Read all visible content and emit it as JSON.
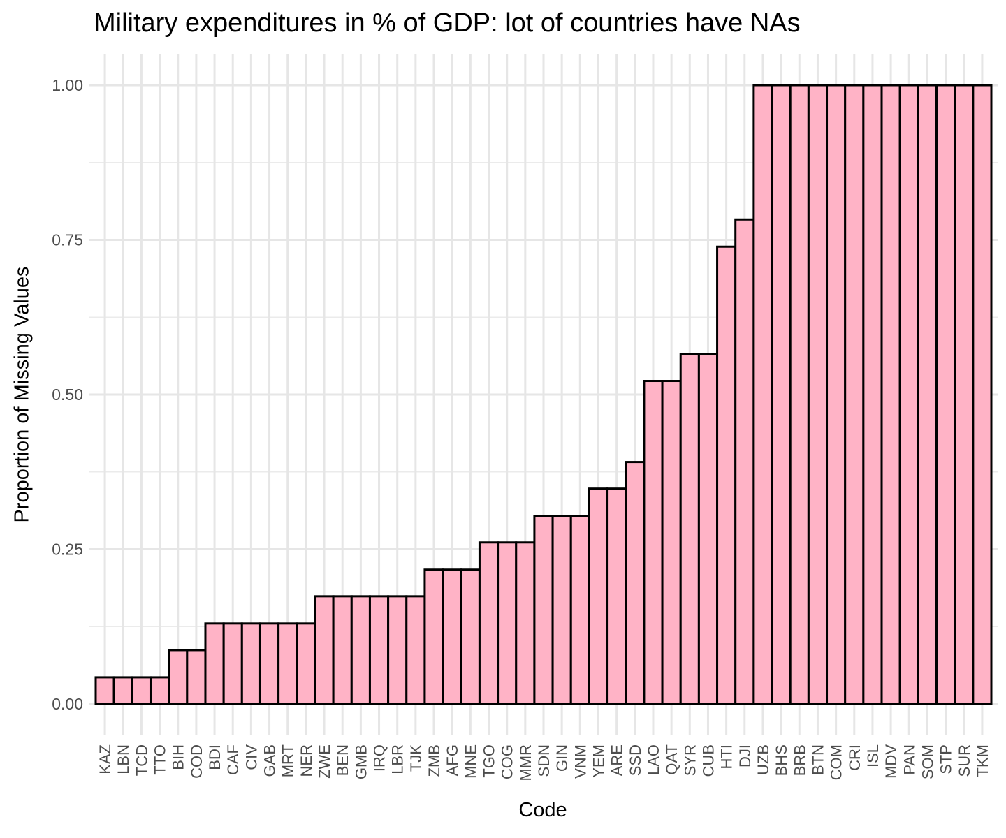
{
  "chart_data": {
    "type": "bar",
    "title": "Military expenditures in % of GDP: lot of countries have NAs",
    "xlabel": "Code",
    "ylabel": "Proportion of Missing Values",
    "ylim": [
      0,
      1.05
    ],
    "yticks": [
      "0.00",
      "0.25",
      "0.50",
      "0.75",
      "1.00"
    ],
    "grid": true,
    "bar_fill": "#ffb3c6",
    "bar_stroke": "#000000",
    "categories": [
      "KAZ",
      "LBN",
      "TCD",
      "TTO",
      "BIH",
      "COD",
      "BDI",
      "CAF",
      "CIV",
      "GAB",
      "MRT",
      "NER",
      "ZWE",
      "BEN",
      "GMB",
      "IRQ",
      "LBR",
      "TJK",
      "ZMB",
      "AFG",
      "MNE",
      "TGO",
      "COG",
      "MMR",
      "SDN",
      "GIN",
      "VNM",
      "YEM",
      "ARE",
      "SSD",
      "LAO",
      "QAT",
      "SYR",
      "CUB",
      "HTI",
      "DJI",
      "UZB",
      "BHS",
      "BRB",
      "BTN",
      "COM",
      "CRI",
      "ISL",
      "MDV",
      "PAN",
      "SOM",
      "STP",
      "SUR",
      "TKM"
    ],
    "values": [
      0.043,
      0.043,
      0.043,
      0.043,
      0.087,
      0.087,
      0.13,
      0.13,
      0.13,
      0.13,
      0.13,
      0.13,
      0.174,
      0.174,
      0.174,
      0.174,
      0.174,
      0.174,
      0.217,
      0.217,
      0.217,
      0.261,
      0.261,
      0.261,
      0.304,
      0.304,
      0.304,
      0.348,
      0.348,
      0.391,
      0.522,
      0.522,
      0.565,
      0.565,
      0.739,
      0.783,
      1.0,
      1.0,
      1.0,
      1.0,
      1.0,
      1.0,
      1.0,
      1.0,
      1.0,
      1.0,
      1.0,
      1.0,
      1.0
    ]
  }
}
